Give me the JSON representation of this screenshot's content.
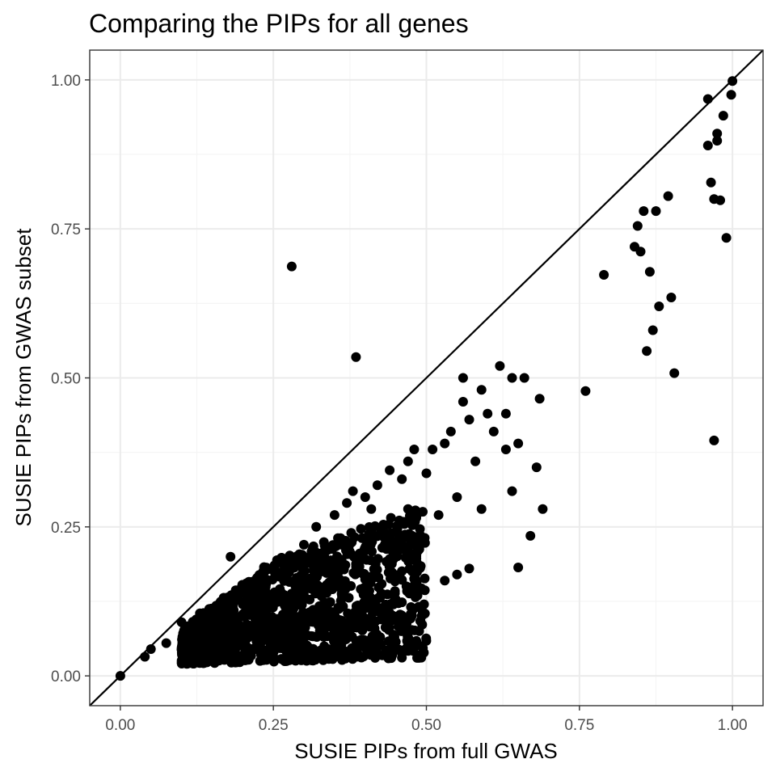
{
  "colors": {
    "background": "#ffffff",
    "grid_major": "#ebebeb",
    "grid_minor": "#f5f5f5",
    "point": "#000000",
    "reference_line": "#000000",
    "panel_border": "#333333",
    "tick_label": "#4d4d4d"
  },
  "chart_data": {
    "type": "scatter",
    "title": "Comparing the PIPs for all genes",
    "xlabel": "SUSIE PIPs from full GWAS",
    "ylabel": "SUSIE PIPs from GWAS subset",
    "xlim": [
      -0.05,
      1.05
    ],
    "ylim": [
      -0.05,
      1.05
    ],
    "x_ticks": [
      0.0,
      0.25,
      0.5,
      0.75,
      1.0
    ],
    "x_tick_labels": [
      "0.00",
      "0.25",
      "0.50",
      "0.75",
      "1.00"
    ],
    "y_ticks": [
      0.0,
      0.25,
      0.5,
      0.75,
      1.0
    ],
    "y_tick_labels": [
      "0.00",
      "0.25",
      "0.50",
      "0.75",
      "1.00"
    ],
    "grid": true,
    "reference_line": {
      "slope": 1,
      "intercept": 0
    },
    "points": [
      [
        0.0,
        0.0
      ],
      [
        0.04,
        0.032
      ],
      [
        0.05,
        0.045
      ],
      [
        0.075,
        0.055
      ],
      [
        0.1,
        0.09
      ],
      [
        0.12,
        0.052
      ],
      [
        0.13,
        0.06
      ],
      [
        0.13,
        0.105
      ],
      [
        0.15,
        0.065
      ],
      [
        0.16,
        0.09
      ],
      [
        0.18,
        0.2
      ],
      [
        0.2,
        0.12
      ],
      [
        0.22,
        0.16
      ],
      [
        0.25,
        0.18
      ],
      [
        0.28,
        0.687
      ],
      [
        0.3,
        0.22
      ],
      [
        0.32,
        0.25
      ],
      [
        0.35,
        0.27
      ],
      [
        0.37,
        0.29
      ],
      [
        0.38,
        0.31
      ],
      [
        0.385,
        0.535
      ],
      [
        0.4,
        0.3
      ],
      [
        0.41,
        0.28
      ],
      [
        0.42,
        0.32
      ],
      [
        0.44,
        0.345
      ],
      [
        0.45,
        0.22
      ],
      [
        0.46,
        0.33
      ],
      [
        0.47,
        0.36
      ],
      [
        0.47,
        0.28
      ],
      [
        0.48,
        0.38
      ],
      [
        0.49,
        0.092
      ],
      [
        0.5,
        0.34
      ],
      [
        0.51,
        0.38
      ],
      [
        0.52,
        0.27
      ],
      [
        0.53,
        0.39
      ],
      [
        0.53,
        0.16
      ],
      [
        0.54,
        0.41
      ],
      [
        0.55,
        0.3
      ],
      [
        0.56,
        0.5
      ],
      [
        0.56,
        0.46
      ],
      [
        0.57,
        0.43
      ],
      [
        0.58,
        0.36
      ],
      [
        0.59,
        0.48
      ],
      [
        0.59,
        0.28
      ],
      [
        0.6,
        0.44
      ],
      [
        0.61,
        0.41
      ],
      [
        0.62,
        0.52
      ],
      [
        0.63,
        0.44
      ],
      [
        0.63,
        0.38
      ],
      [
        0.64,
        0.5
      ],
      [
        0.64,
        0.31
      ],
      [
        0.65,
        0.39
      ],
      [
        0.66,
        0.5
      ],
      [
        0.67,
        0.235
      ],
      [
        0.68,
        0.35
      ],
      [
        0.685,
        0.465
      ],
      [
        0.69,
        0.28
      ],
      [
        0.65,
        0.182
      ],
      [
        0.55,
        0.17
      ],
      [
        0.57,
        0.18
      ],
      [
        0.76,
        0.478
      ],
      [
        0.79,
        0.673
      ],
      [
        0.84,
        0.72
      ],
      [
        0.845,
        0.755
      ],
      [
        0.85,
        0.712
      ],
      [
        0.855,
        0.78
      ],
      [
        0.86,
        0.545
      ],
      [
        0.865,
        0.678
      ],
      [
        0.87,
        0.58
      ],
      [
        0.875,
        0.78
      ],
      [
        0.88,
        0.62
      ],
      [
        0.895,
        0.805
      ],
      [
        0.9,
        0.635
      ],
      [
        0.905,
        0.508
      ],
      [
        0.96,
        0.968
      ],
      [
        0.96,
        0.89
      ],
      [
        0.965,
        0.828
      ],
      [
        0.97,
        0.8
      ],
      [
        0.97,
        0.395
      ],
      [
        0.975,
        0.898
      ],
      [
        0.975,
        0.91
      ],
      [
        0.98,
        0.798
      ],
      [
        0.985,
        0.94
      ],
      [
        0.99,
        0.735
      ],
      [
        0.998,
        0.975
      ],
      [
        1.0,
        0.998
      ]
    ],
    "dense_cluster": {
      "x_range": [
        0.1,
        0.5
      ],
      "y_range": [
        0.02,
        0.25
      ]
    }
  }
}
